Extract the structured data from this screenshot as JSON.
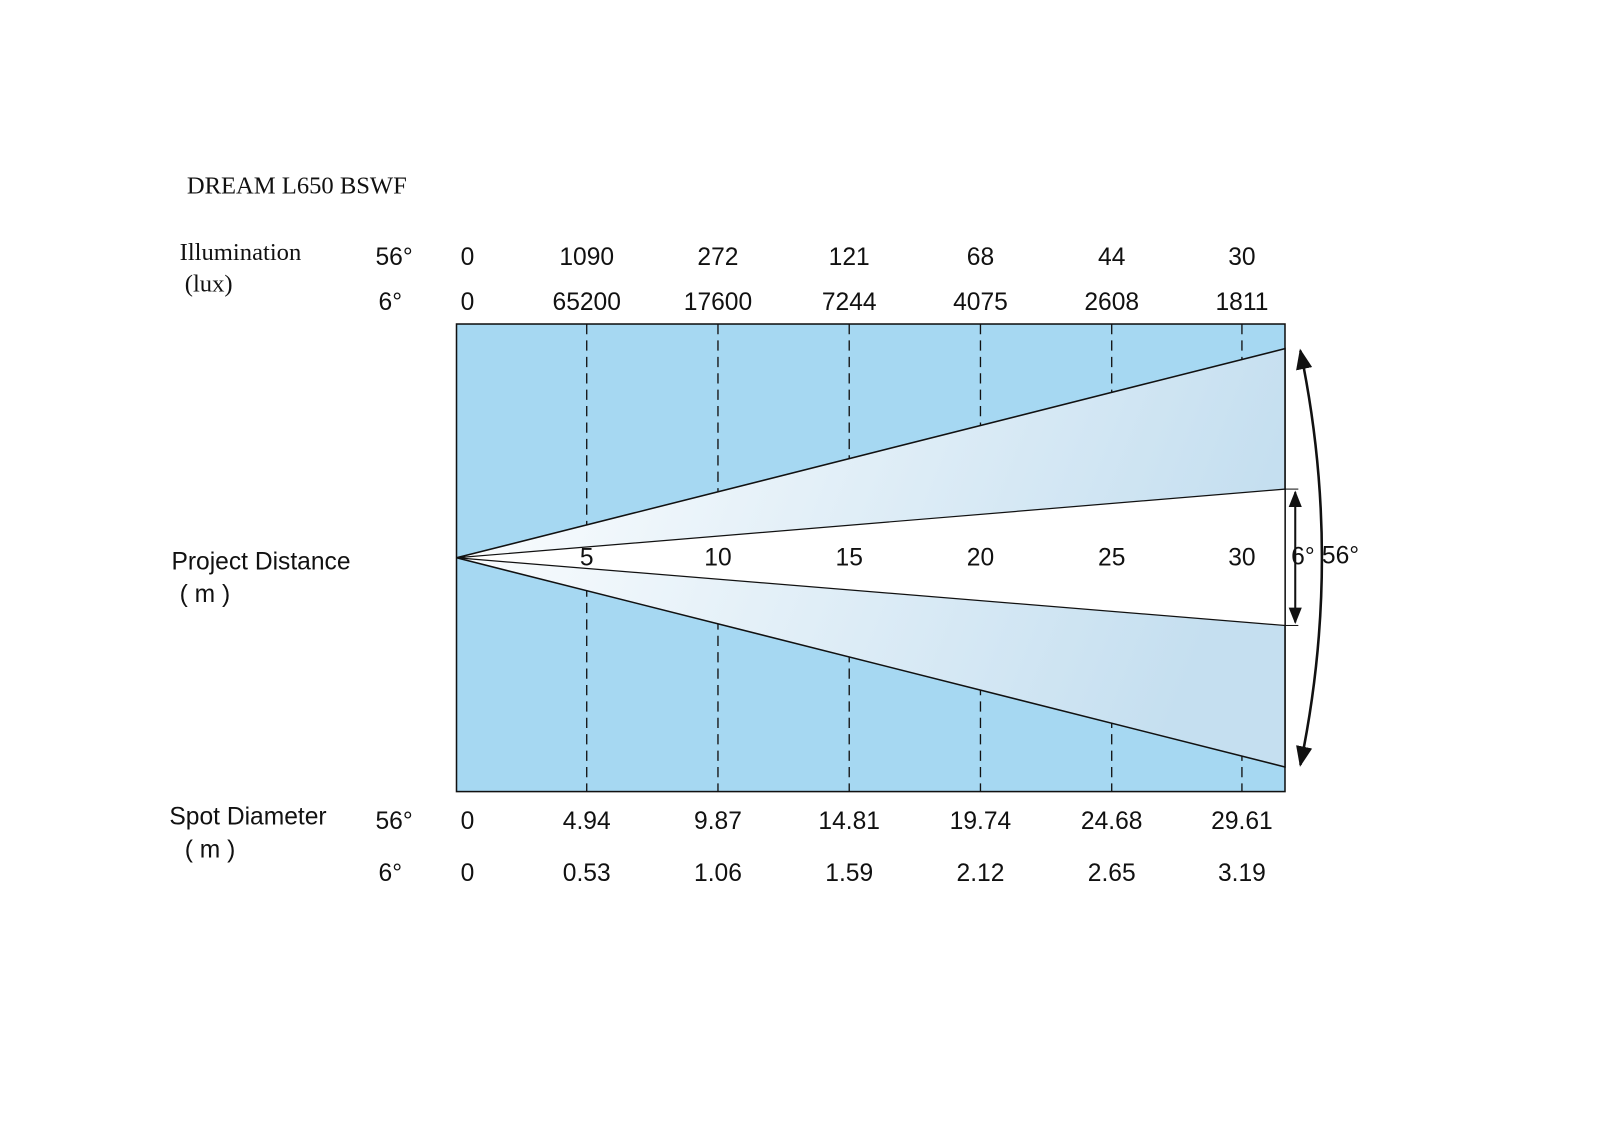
{
  "title": "DREAM L650 BSWF",
  "illumination": {
    "label": "Illumination",
    "unit": "(lux)",
    "rows": [
      {
        "angle": "56°",
        "values": [
          0,
          1090,
          272,
          121,
          68,
          44,
          30
        ]
      },
      {
        "angle": "6°",
        "values": [
          0,
          65200,
          17600,
          7244,
          4075,
          2608,
          1811
        ]
      }
    ]
  },
  "distance": {
    "label": "Project Distance",
    "unit": "( m )",
    "values": [
      5,
      10,
      15,
      20,
      25,
      30
    ]
  },
  "spot_diameter": {
    "label": "Spot Diameter",
    "unit": "( m )",
    "rows": [
      {
        "angle": "56°",
        "values": [
          0,
          4.94,
          9.87,
          14.81,
          19.74,
          24.68,
          29.61
        ]
      },
      {
        "angle": "6°",
        "values": [
          0,
          0.53,
          1.06,
          1.59,
          2.12,
          2.65,
          3.19
        ]
      }
    ]
  },
  "beam_angles": {
    "narrow": "6°",
    "wide": "56°"
  }
}
